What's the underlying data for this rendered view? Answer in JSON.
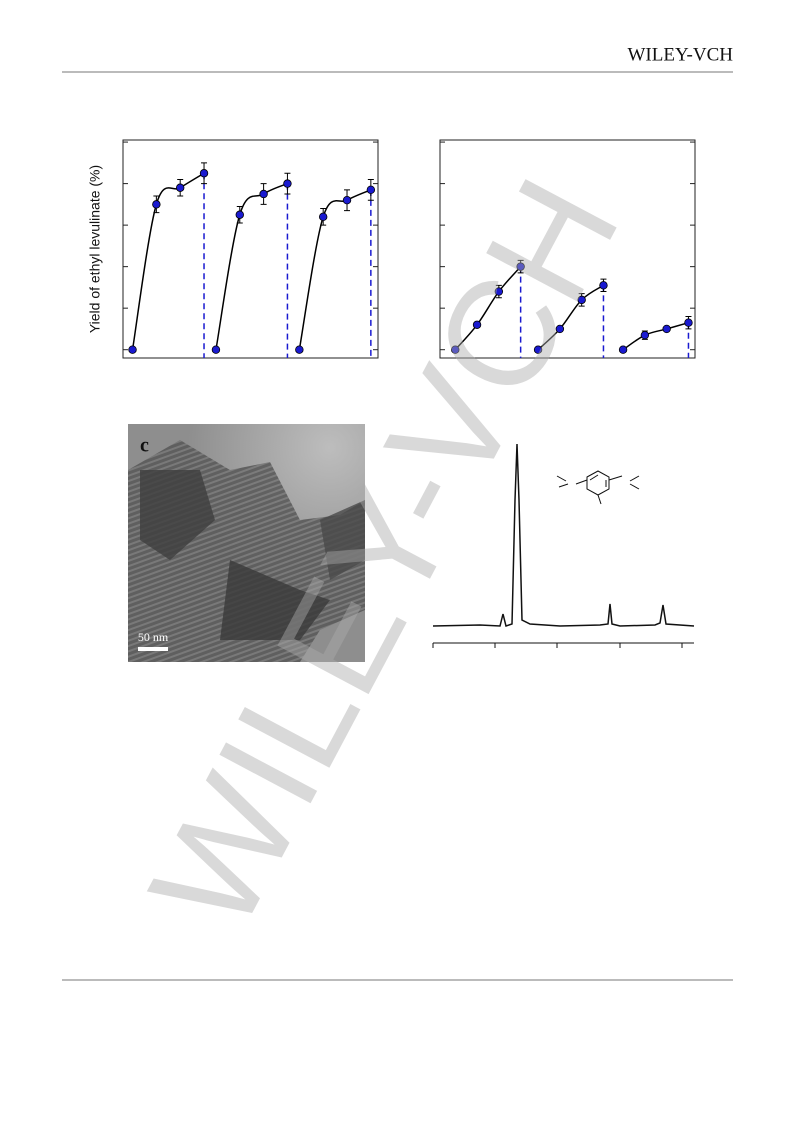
{
  "header": {
    "publisher": "WILEY-VCH"
  },
  "watermark": "WILEY-VCH",
  "panel_c": {
    "label": "c",
    "scale_bar": "50 nm"
  },
  "chart_data": [
    {
      "type": "line",
      "y_label": "Yield of ethyl levulinate (%)",
      "xlim": [
        -0.4,
        10.3
      ],
      "ylim": [
        -4,
        101
      ],
      "yticks": [
        0,
        20,
        40,
        60,
        80,
        100
      ],
      "series": [
        {
          "color": "#1a1ad0",
          "x": [
            0,
            1,
            2,
            3
          ],
          "values": [
            0,
            70,
            78,
            85
          ],
          "errors": [
            0,
            4,
            4,
            5
          ]
        },
        {
          "color": "#1a1ad0",
          "x": [
            3.5,
            4.5,
            5.5,
            6.5
          ],
          "values": [
            0,
            65,
            75,
            80
          ],
          "errors": [
            0,
            4,
            5,
            5
          ]
        },
        {
          "color": "#1a1ad0",
          "x": [
            7,
            8,
            9,
            10
          ],
          "values": [
            0,
            64,
            72,
            77
          ],
          "errors": [
            0,
            4,
            5,
            5
          ]
        }
      ]
    },
    {
      "type": "line",
      "xlim": [
        -0.7,
        11
      ],
      "ylim": [
        -4,
        101
      ],
      "yticks": [
        0,
        20,
        40,
        60,
        80,
        100
      ],
      "series": [
        {
          "color": "#1a1ad0",
          "x": [
            0,
            1,
            2,
            3
          ],
          "values": [
            0,
            12,
            28,
            40
          ],
          "errors": [
            0,
            0,
            3,
            3
          ]
        },
        {
          "color": "#1a1ad0",
          "x": [
            3.8,
            4.8,
            5.8,
            6.8
          ],
          "values": [
            0,
            10,
            24,
            31
          ],
          "errors": [
            0,
            0,
            3,
            3
          ]
        },
        {
          "color": "#1a1ad0",
          "x": [
            7.7,
            8.7,
            9.7,
            10.7
          ],
          "values": [
            0,
            7,
            10,
            13
          ],
          "errors": [
            0,
            2,
            0,
            3
          ]
        }
      ]
    }
  ]
}
